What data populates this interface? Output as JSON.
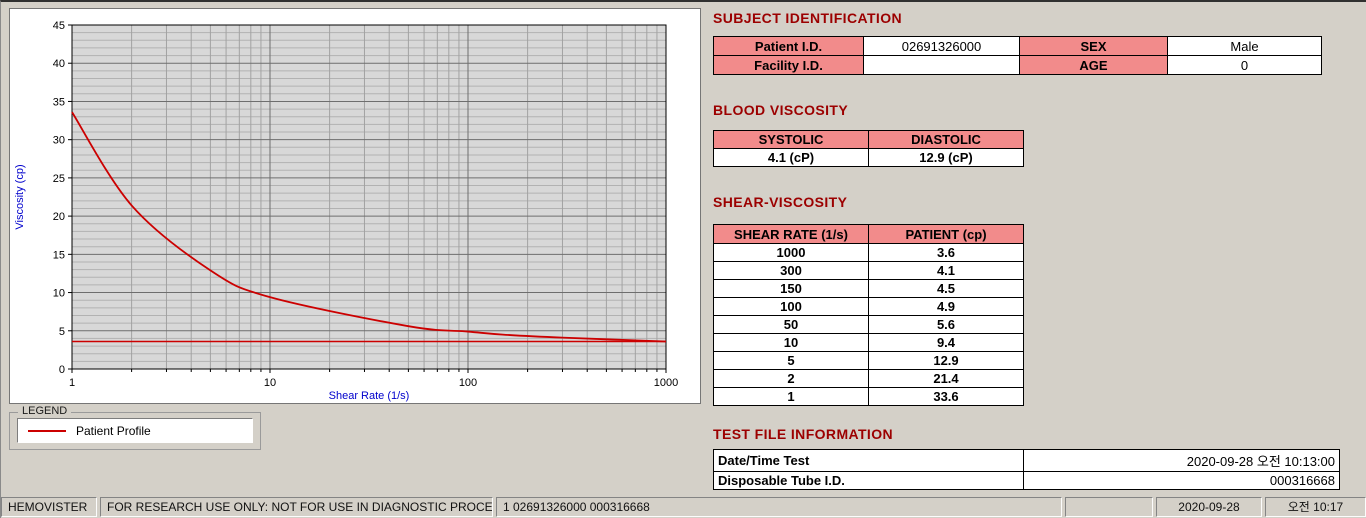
{
  "colors": {
    "section_header": "#9c0000",
    "label_pink": "#f28b8b",
    "highlight_cyan": "#aef2f2",
    "curve_red": "#cc0000",
    "axis_label_blue": "#0000cc"
  },
  "chart_data": {
    "type": "line",
    "title": "",
    "xlabel": "Shear Rate (1/s)",
    "ylabel": "Viscosity (cp)",
    "x_scale": "log10",
    "xlim": [
      1,
      1000
    ],
    "ylim": [
      0,
      45
    ],
    "y_ticks": [
      0,
      5,
      10,
      15,
      20,
      25,
      30,
      35,
      40,
      45
    ],
    "x_ticks": [
      1,
      10,
      100,
      1000
    ],
    "grid": true,
    "axis_label_color": "#0000cc",
    "line_color": "#cc0000",
    "baseline": 3.6,
    "series": [
      {
        "name": "Patient Profile",
        "x": [
          1,
          2,
          5,
          10,
          50,
          100,
          150,
          300,
          1000
        ],
        "y": [
          33.6,
          21.4,
          12.9,
          9.4,
          5.6,
          4.9,
          4.5,
          4.1,
          3.6
        ]
      }
    ]
  },
  "legend": {
    "title": "LEGEND",
    "items": [
      {
        "label": "Patient Profile",
        "color": "#cc0000"
      }
    ]
  },
  "subject_identification": {
    "title": "SUBJECT IDENTIFICATION",
    "rows": [
      {
        "label1": "Patient I.D.",
        "value1": "02691326000",
        "label2": "SEX",
        "value2": "Male"
      },
      {
        "label1": "Facility I.D.",
        "value1": "",
        "label2": "AGE",
        "value2": "0"
      }
    ]
  },
  "blood_viscosity": {
    "title": "BLOOD VISCOSITY",
    "headers": [
      "SYSTOLIC",
      "DIASTOLIC"
    ],
    "values": [
      "4.1 (cP)",
      "12.9 (cP)"
    ]
  },
  "shear_viscosity": {
    "title": "SHEAR-VISCOSITY",
    "headers": [
      "SHEAR RATE (1/s)",
      "PATIENT (cp)"
    ],
    "rows": [
      {
        "rate": "1000",
        "patient": "3.6",
        "highlight": false
      },
      {
        "rate": "300",
        "patient": "4.1",
        "highlight": true
      },
      {
        "rate": "150",
        "patient": "4.5",
        "highlight": false
      },
      {
        "rate": "100",
        "patient": "4.9",
        "highlight": false
      },
      {
        "rate": "50",
        "patient": "5.6",
        "highlight": false
      },
      {
        "rate": "10",
        "patient": "9.4",
        "highlight": false
      },
      {
        "rate": "5",
        "patient": "12.9",
        "highlight": true
      },
      {
        "rate": "2",
        "patient": "21.4",
        "highlight": false
      },
      {
        "rate": "1",
        "patient": "33.6",
        "highlight": false
      }
    ]
  },
  "test_file_information": {
    "title": "TEST FILE INFORMATION",
    "rows": [
      {
        "label": "Date/Time Test",
        "value": "2020-09-28   오전 10:13:00"
      },
      {
        "label": "Disposable Tube I.D.",
        "value": "000316668"
      }
    ]
  },
  "status_bar": {
    "app_name": "HEMOVISTER",
    "disclaimer": "FOR RESEARCH USE ONLY: NOT FOR USE IN DIAGNOSTIC PROCEDURES",
    "record": "1  02691326000  000316668",
    "date": "2020-09-28",
    "time": "오전 10:17"
  }
}
